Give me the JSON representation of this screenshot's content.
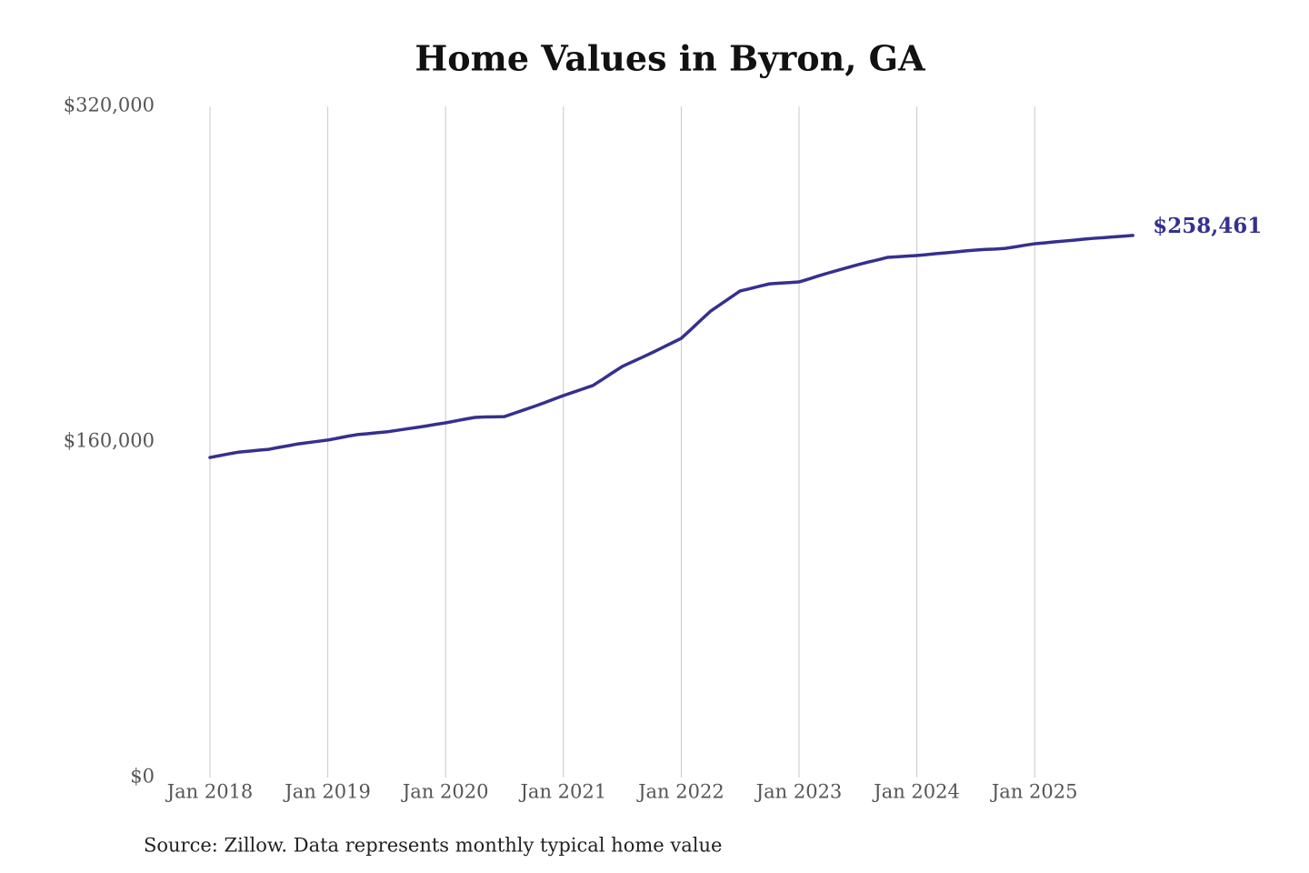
{
  "chart_data": {
    "type": "line",
    "title": "Home Values in Byron, GA",
    "source": "Source: Zillow. Data represents monthly typical home value",
    "x": [
      "2018-01",
      "2018-02",
      "2018-03",
      "2018-04",
      "2018-05",
      "2018-06",
      "2018-07",
      "2018-08",
      "2018-09",
      "2018-10",
      "2018-11",
      "2018-12",
      "2019-01",
      "2019-02",
      "2019-03",
      "2019-04",
      "2019-05",
      "2019-06",
      "2019-07",
      "2019-08",
      "2019-09",
      "2019-10",
      "2019-11",
      "2019-12",
      "2020-01",
      "2020-02",
      "2020-03",
      "2020-04",
      "2020-05",
      "2020-06",
      "2020-07",
      "2020-08",
      "2020-09",
      "2020-10",
      "2020-11",
      "2020-12",
      "2021-01",
      "2021-02",
      "2021-03",
      "2021-04",
      "2021-05",
      "2021-06",
      "2021-07",
      "2021-08",
      "2021-09",
      "2021-10",
      "2021-11",
      "2021-12",
      "2022-01",
      "2022-02",
      "2022-03",
      "2022-04",
      "2022-05",
      "2022-06",
      "2022-07",
      "2022-08",
      "2022-09",
      "2022-10",
      "2022-11",
      "2022-12",
      "2023-01",
      "2023-02",
      "2023-03",
      "2023-04",
      "2023-05",
      "2023-06",
      "2023-07",
      "2023-08",
      "2023-09",
      "2023-10",
      "2023-11",
      "2023-12",
      "2024-01",
      "2024-02",
      "2024-03",
      "2024-04",
      "2024-05",
      "2024-06",
      "2024-07",
      "2024-08",
      "2024-09",
      "2024-10",
      "2024-11",
      "2024-12",
      "2025-01",
      "2025-02",
      "2025-03",
      "2025-04",
      "2025-05",
      "2025-06",
      "2025-07",
      "2025-08",
      "2025-09",
      "2025-10",
      "2025-11"
    ],
    "series": [
      {
        "name": "Home value",
        "color": "#35308f",
        "values": [
          152600,
          153500,
          154400,
          155200,
          155600,
          156100,
          156500,
          157400,
          158200,
          159100,
          159700,
          160300,
          160900,
          161800,
          162700,
          163500,
          163900,
          164400,
          164800,
          165500,
          166200,
          166900,
          167600,
          168400,
          169100,
          170000,
          170900,
          171700,
          171900,
          172000,
          172100,
          173700,
          175300,
          176900,
          178600,
          180400,
          182100,
          183700,
          185300,
          186900,
          189900,
          193000,
          196000,
          198200,
          200300,
          202500,
          204800,
          207100,
          209400,
          213700,
          218100,
          222400,
          225600,
          228800,
          232000,
          233100,
          234300,
          235400,
          235700,
          236000,
          236300,
          237700,
          239200,
          240600,
          241900,
          243200,
          244500,
          245700,
          246800,
          248000,
          248300,
          248600,
          248900,
          249300,
          249800,
          250200,
          250600,
          251100,
          251500,
          251800,
          252000,
          252300,
          253000,
          253800,
          254500,
          254900,
          255400,
          255800,
          256200,
          256700,
          257100,
          257400,
          257800,
          258100,
          258461
        ],
        "value_labels": [
          null,
          null,
          null,
          null,
          null,
          null,
          null,
          null,
          null,
          null,
          null,
          null,
          null,
          null,
          null,
          null,
          null,
          null,
          null,
          null,
          null,
          null,
          null,
          null,
          null,
          null,
          null,
          null,
          null,
          null,
          null,
          null,
          null,
          null,
          null,
          null,
          null,
          null,
          null,
          null,
          null,
          null,
          null,
          null,
          null,
          null,
          null,
          null,
          null,
          null,
          null,
          null,
          null,
          null,
          null,
          null,
          null,
          null,
          null,
          null,
          null,
          null,
          null,
          null,
          null,
          null,
          null,
          null,
          null,
          null,
          null,
          null,
          null,
          null,
          null,
          null,
          null,
          null,
          null,
          null,
          null,
          null,
          null,
          null,
          null,
          null,
          null,
          null,
          null,
          null,
          null,
          null,
          null,
          null,
          "$258,461"
        ]
      }
    ],
    "ylim": [
      0,
      320000
    ],
    "yticks": [
      {
        "value": 0,
        "label": "$0"
      },
      {
        "value": 160000,
        "label": "$160,000"
      },
      {
        "value": 320000,
        "label": "$320,000"
      }
    ],
    "xticks": [
      {
        "value": "2018-01",
        "label": "Jan 2018"
      },
      {
        "value": "2019-01",
        "label": "Jan 2019"
      },
      {
        "value": "2020-01",
        "label": "Jan 2020"
      },
      {
        "value": "2021-01",
        "label": "Jan 2021"
      },
      {
        "value": "2022-01",
        "label": "Jan 2022"
      },
      {
        "value": "2023-01",
        "label": "Jan 2023"
      },
      {
        "value": "2024-01",
        "label": "Jan 2024"
      },
      {
        "value": "2025-01",
        "label": "Jan 2025"
      }
    ],
    "grid": "x"
  }
}
